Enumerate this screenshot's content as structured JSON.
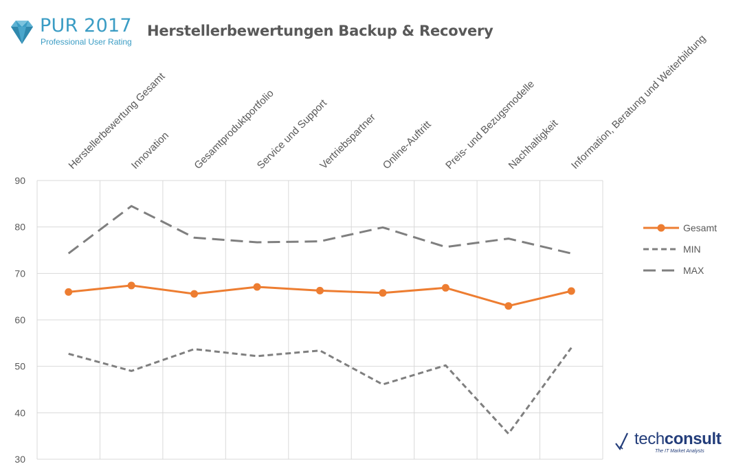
{
  "header": {
    "logo_title": "PUR 2017",
    "logo_subtitle": "Professional User Rating",
    "chart_title": "Herstellerbewertungen Backup & Recovery"
  },
  "footer_logo": {
    "name_part1": "tech",
    "name_part2": "consult",
    "tagline": "The IT Market Analysts"
  },
  "colors": {
    "gesamt": "#ed7d31",
    "min_max": "#7f7f7f",
    "grid": "#d9d9d9",
    "text": "#595959",
    "logo_blue": "#3a9cc4",
    "techconsult_blue": "#233d7a"
  },
  "chart_data": {
    "type": "line",
    "title": "Herstellerbewertungen Backup & Recovery",
    "xlabel": "",
    "ylabel": "",
    "ylim": [
      30,
      90
    ],
    "yticks": [
      30,
      40,
      50,
      60,
      70,
      80,
      90
    ],
    "grid": true,
    "legend_position": "right",
    "categories": [
      "Herstellerbewertung Gesamt",
      "Innovation",
      "Gesamtproduktportfolio",
      "Service und Support",
      "Vertriebspartner",
      "Online-Auftritt",
      "Preis- und Bezugsmodelle",
      "Nachhaltigkeit",
      "Information, Beratung und Weiterbildung"
    ],
    "series": [
      {
        "name": "Gesamt",
        "style": "solid-markers",
        "color": "#ed7d31",
        "values": [
          66.0,
          67.4,
          65.6,
          67.1,
          66.3,
          65.8,
          66.9,
          63.0,
          66.2
        ]
      },
      {
        "name": "MIN",
        "style": "short-dash",
        "color": "#7f7f7f",
        "values": [
          52.7,
          49.0,
          53.7,
          52.2,
          53.4,
          46.1,
          50.2,
          35.5,
          54.0
        ]
      },
      {
        "name": "MAX",
        "style": "long-dash",
        "color": "#7f7f7f",
        "values": [
          74.3,
          84.5,
          77.7,
          76.7,
          76.9,
          79.9,
          75.7,
          77.5,
          74.3
        ]
      }
    ]
  }
}
